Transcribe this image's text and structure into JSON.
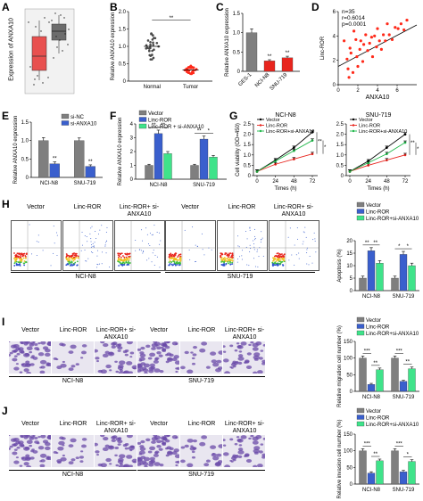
{
  "panel_labels": {
    "A": "A",
    "B": "B",
    "C": "C",
    "D": "D",
    "E": "E",
    "F": "F",
    "G": "G",
    "H": "H",
    "I": "I",
    "J": "J"
  },
  "colors": {
    "vector": "#7f7f7f",
    "linc_ror": "#3a5fcd",
    "linc_ror_si": "#3fe38a",
    "si_nc": "#7f7f7f",
    "si_anxa10": "#3a5fcd",
    "normal_dot": "#4a4a4a",
    "tumor_dot": "#ff2a1a",
    "line_vector": "#000000",
    "line_linc": "#e8251e",
    "line_si": "#1fb84a",
    "panelA_normal": "#e8504f",
    "panelA_tumor": "#6c6c6c",
    "microscopy": "#6a4aa8"
  },
  "panel_a": {
    "ylabel": "Expression of ANXA10"
  },
  "panel_b": {
    "ylabel": "Relative ANXA10 expression",
    "categories": [
      "Normal",
      "Tumor"
    ],
    "sig": "**"
  },
  "panel_c": {
    "ylabel": "Relative ANXA10 expression",
    "categories": [
      "GES-1",
      "NCI-N8",
      "SNU-719"
    ],
    "sigs": [
      "",
      "**",
      "**"
    ]
  },
  "panel_d": {
    "ylabel": "Linc-ROR",
    "xlabel": "ANXA10",
    "stat_n": "n=35",
    "stat_r": "r=0.6014",
    "stat_p": "p=0.0001"
  },
  "panel_e": {
    "ylabel": "Relative ANXA10 expression",
    "categories": [
      "NCI-N8",
      "SNU-719"
    ],
    "legend": [
      "si-NC",
      "si-ANXA10"
    ],
    "sigs": [
      "**",
      "**"
    ]
  },
  "panel_f": {
    "ylabel": "Relative ANXA10 expression",
    "categories": [
      "NCI-N8",
      "SNU-719"
    ],
    "legend": [
      "Vector",
      "Linc-ROR",
      "Linc-ROR + si-ANXA10"
    ],
    "sig_left": [
      "**",
      "**"
    ],
    "sig_right": [
      "**",
      "*"
    ]
  },
  "panel_g": {
    "ylabel": "Cell viability (OD=450)",
    "xlabel": "Times (h)",
    "titles": [
      "NCI-N8",
      "SNU-719"
    ],
    "legend": [
      "Vector",
      "Linc-ROR",
      "Linc-ROR+si-ANXA10"
    ],
    "sigs": [
      "**",
      "*"
    ]
  },
  "panel_h": {
    "ylabel": "Apoptosis (%)",
    "categories": [
      "NCI-N8",
      "SNU-719"
    ],
    "legend": [
      "Vector",
      "Linc-ROR",
      "Linc-ROR+si-ANXA10"
    ],
    "group_titles": [
      "Vector",
      "Linc-ROR",
      "Linc-ROR+ si-ANXA10",
      "Vector",
      "Linc-ROR",
      "Linc-ROR+ si-ANXA10"
    ],
    "group_labels": [
      "NCI-N8",
      "SNU-719"
    ],
    "sigs_left": [
      "**",
      "*"
    ],
    "sigs_right": [
      "**",
      "*"
    ]
  },
  "panel_i": {
    "ylabel": "Relative migration cell number (%)",
    "categories": [
      "NCI-N8",
      "SNU-719"
    ],
    "legend": [
      "Vector",
      "Linc-ROR",
      "Linc-ROR+si-ANXA10"
    ],
    "group_titles": [
      "Vector",
      "Linc-ROR",
      "Linc-ROR+ si-ANXA10",
      "Vector",
      "Linc-ROR",
      "Linc-ROR+ si-ANXA10"
    ],
    "group_labels": [
      "NCI-N8",
      "SNU-719"
    ],
    "sigs_top": [
      "***",
      "***"
    ],
    "sigs_bot": [
      "**",
      "**"
    ]
  },
  "panel_j": {
    "ylabel": "Relative invasion cell number (%)",
    "categories": [
      "NCI-N8",
      "SNU-719"
    ],
    "legend": [
      "Vector",
      "Linc-ROR",
      "Linc-ROR+si-ANXA10"
    ],
    "group_titles": [
      "Vector",
      "Linc-ROR",
      "Linc-ROR+ si-ANXA10",
      "Vector",
      "Linc-ROR",
      "Linc-ROR+ si-ANXA10"
    ],
    "group_labels": [
      "NCI-N8",
      "SNU-719"
    ],
    "sigs_top": [
      "***",
      "***"
    ],
    "sigs_bot": [
      "**",
      "*"
    ]
  },
  "chart_data": [
    {
      "id": "B",
      "type": "scatter",
      "categories": [
        "Normal",
        "Tumor"
      ],
      "values": [
        1.0,
        0.32
      ],
      "ylim": [
        0,
        2.0
      ],
      "yticks": [
        0,
        0.5,
        1.0,
        1.5,
        2.0
      ],
      "ytick_labels": [
        "0",
        "0.5",
        "1.0",
        "1.5",
        "2.0"
      ],
      "ylabel": "Relative ANXA10 expression"
    },
    {
      "id": "C",
      "type": "bar",
      "categories": [
        "GES-1",
        "NCI-N8",
        "SNU-719"
      ],
      "values": [
        1.0,
        0.27,
        0.35
      ],
      "errors": [
        0.1,
        0.03,
        0.04
      ],
      "ylim": [
        0,
        1.5
      ],
      "yticks": [
        0,
        0.5,
        1.0,
        1.5
      ],
      "ytick_labels": [
        "0",
        "0.5",
        "1.0",
        "1.5"
      ],
      "ylabel": "Relative ANXA10 expression"
    },
    {
      "id": "D",
      "type": "scatter",
      "ylim": [
        0,
        6
      ],
      "xlim": [
        0,
        8
      ],
      "yticks": [
        0,
        2,
        4,
        6
      ],
      "xticks": [
        0,
        2,
        4,
        6
      ],
      "ytick_labels": [
        "0",
        "2",
        "4",
        "6"
      ],
      "xtick_labels": [
        "0",
        "2",
        "4",
        "6"
      ],
      "xlabel": "ANXA10",
      "ylabel": "Linc-ROR",
      "fit": [
        [
          0,
          1.5
        ],
        [
          8,
          4.9
        ]
      ],
      "points": [
        [
          0.6,
          3.6
        ],
        [
          0.9,
          2.1
        ],
        [
          1.0,
          1.3
        ],
        [
          1.1,
          0.6
        ],
        [
          1.2,
          3.0
        ],
        [
          1.3,
          2.6
        ],
        [
          1.5,
          1.0
        ],
        [
          1.6,
          4.4
        ],
        [
          1.8,
          3.7
        ],
        [
          1.9,
          2.3
        ],
        [
          2.0,
          1.5
        ],
        [
          2.2,
          2.9
        ],
        [
          2.3,
          3.6
        ],
        [
          2.5,
          1.9
        ],
        [
          2.6,
          3.3
        ],
        [
          2.8,
          4.1
        ],
        [
          3.0,
          2.8
        ],
        [
          3.2,
          3.4
        ],
        [
          3.4,
          3.9
        ],
        [
          3.5,
          2.3
        ],
        [
          3.7,
          4.0
        ],
        [
          3.9,
          3.1
        ],
        [
          4.0,
          4.6
        ],
        [
          4.2,
          3.6
        ],
        [
          4.4,
          2.9
        ],
        [
          4.6,
          4.1
        ],
        [
          4.8,
          3.6
        ],
        [
          5.0,
          5.0
        ],
        [
          5.2,
          4.1
        ],
        [
          5.5,
          3.7
        ],
        [
          5.8,
          4.7
        ],
        [
          6.1,
          4.6
        ],
        [
          6.4,
          5.0
        ],
        [
          6.7,
          4.5
        ],
        [
          7.0,
          5.3
        ]
      ]
    },
    {
      "id": "E",
      "type": "bar",
      "categories": [
        "NCI-N8",
        "SNU-719"
      ],
      "series": [
        {
          "name": "si-NC",
          "values": [
            1.0,
            1.0
          ],
          "errors": [
            0.08,
            0.07
          ]
        },
        {
          "name": "si-ANXA10",
          "values": [
            0.37,
            0.3
          ],
          "errors": [
            0.05,
            0.04
          ]
        }
      ],
      "ylim": [
        0,
        1.5
      ],
      "yticks": [
        0,
        0.5,
        1.0,
        1.5
      ],
      "ytick_labels": [
        "0",
        "0.5",
        "1.0",
        "1.5"
      ],
      "ylabel": "Relative ANXA10 expression"
    },
    {
      "id": "F",
      "type": "bar",
      "categories": [
        "NCI-N8",
        "SNU-719"
      ],
      "series": [
        {
          "name": "Vector",
          "values": [
            1.0,
            1.0
          ],
          "errors": [
            0.08,
            0.08
          ]
        },
        {
          "name": "Linc-ROR",
          "values": [
            3.3,
            2.9
          ],
          "errors": [
            0.25,
            0.22
          ]
        },
        {
          "name": "Linc-ROR + si-ANXA10",
          "values": [
            1.85,
            1.6
          ],
          "errors": [
            0.15,
            0.12
          ]
        }
      ],
      "ylim": [
        0,
        4
      ],
      "yticks": [
        0,
        1,
        2,
        3,
        4
      ],
      "ytick_labels": [
        "0",
        "1",
        "2",
        "3",
        "4"
      ],
      "ylabel": "Relative ANXA10 expression"
    },
    {
      "id": "G1",
      "type": "line",
      "title": "NCI-N8",
      "x": [
        0,
        24,
        48,
        72
      ],
      "xtick_labels": [
        "0",
        "24",
        "48",
        "72"
      ],
      "series": [
        {
          "name": "Vector",
          "values": [
            0.2,
            0.75,
            1.35,
            2.1
          ]
        },
        {
          "name": "Linc-ROR",
          "values": [
            0.2,
            0.55,
            0.8,
            1.05
          ]
        },
        {
          "name": "Linc-ROR+si-ANXA10",
          "values": [
            0.2,
            0.7,
            1.2,
            1.7
          ]
        }
      ],
      "ylim": [
        0,
        2.5
      ],
      "yticks": [
        0,
        0.5,
        1.0,
        1.5,
        2.0,
        2.5
      ],
      "ytick_labels": [
        "0",
        "0.5",
        "1.0",
        "1.5",
        "2.0",
        "2.5"
      ],
      "xlabel": "Times (h)",
      "ylabel": "Cell viability (OD=450)"
    },
    {
      "id": "G2",
      "type": "line",
      "title": "SNU-719",
      "x": [
        0,
        24,
        48,
        72
      ],
      "xtick_labels": [
        "0",
        "24",
        "48",
        "72"
      ],
      "series": [
        {
          "name": "Vector",
          "values": [
            0.2,
            0.7,
            1.35,
            2.0
          ]
        },
        {
          "name": "Linc-ROR",
          "values": [
            0.2,
            0.5,
            0.75,
            1.0
          ]
        },
        {
          "name": "Linc-ROR+si-ANXA10",
          "values": [
            0.2,
            0.62,
            1.05,
            1.6
          ]
        }
      ],
      "ylim": [
        0,
        2.5
      ],
      "yticks": [
        0,
        0.5,
        1.0,
        1.5,
        2.0,
        2.5
      ],
      "ytick_labels": [
        "0",
        "0.5",
        "1.0",
        "1.5",
        "2.0",
        "2.5"
      ],
      "xlabel": "Times (h)"
    },
    {
      "id": "H",
      "type": "bar",
      "categories": [
        "NCI-N8",
        "SNU-719"
      ],
      "series": [
        {
          "name": "Vector",
          "values": [
            5.0,
            5.0
          ],
          "errors": [
            0.8,
            0.8
          ]
        },
        {
          "name": "Linc-ROR",
          "values": [
            16.0,
            14.5
          ],
          "errors": [
            1.2,
            1.2
          ]
        },
        {
          "name": "Linc-ROR+si-ANXA10",
          "values": [
            11.0,
            10.0
          ],
          "errors": [
            1.0,
            1.0
          ]
        }
      ],
      "ylim": [
        0,
        20
      ],
      "yticks": [
        0,
        5,
        10,
        15,
        20
      ],
      "ytick_labels": [
        "0",
        "5",
        "10",
        "15",
        "20"
      ],
      "ylabel": "Apoptosis (%)"
    },
    {
      "id": "I",
      "type": "bar",
      "categories": [
        "NCI-N8",
        "SNU-719"
      ],
      "series": [
        {
          "name": "Vector",
          "values": [
            100,
            100
          ],
          "errors": [
            6,
            6
          ]
        },
        {
          "name": "Linc-ROR",
          "values": [
            21,
            30
          ],
          "errors": [
            3,
            3
          ]
        },
        {
          "name": "Linc-ROR+si-ANXA10",
          "values": [
            65,
            68
          ],
          "errors": [
            5,
            5
          ]
        }
      ],
      "ylim": [
        0,
        150
      ],
      "yticks": [
        0,
        50,
        100,
        150
      ],
      "ytick_labels": [
        "0",
        "50",
        "100",
        "150"
      ],
      "ylabel": "Relative migration cell number (%)"
    },
    {
      "id": "J",
      "type": "bar",
      "categories": [
        "NCI-N8",
        "SNU-719"
      ],
      "series": [
        {
          "name": "Vector",
          "values": [
            100,
            100
          ],
          "errors": [
            6,
            6
          ]
        },
        {
          "name": "Linc-ROR",
          "values": [
            33,
            37
          ],
          "errors": [
            4,
            4
          ]
        },
        {
          "name": "Linc-ROR+si-ANXA10",
          "values": [
            70,
            68
          ],
          "errors": [
            5,
            5
          ]
        }
      ],
      "ylim": [
        0,
        150
      ],
      "yticks": [
        0,
        50,
        100,
        150
      ],
      "ytick_labels": [
        "0",
        "50",
        "100",
        "150"
      ],
      "ylabel": "Relative invasion cell number (%)"
    }
  ]
}
